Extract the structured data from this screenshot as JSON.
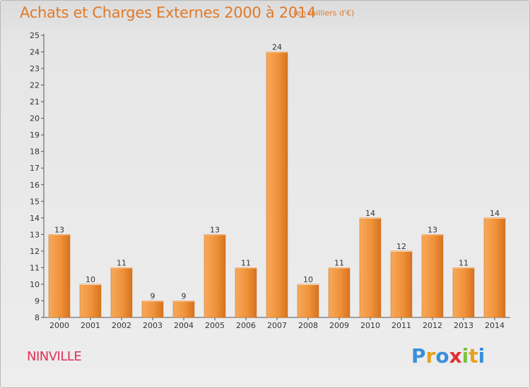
{
  "chart_data": {
    "type": "bar",
    "title": "Achats et Charges Externes 2000 à 2014",
    "subtitle": "(en milliers d'€)",
    "categories": [
      "2000",
      "2001",
      "2002",
      "2003",
      "2004",
      "2005",
      "2006",
      "2007",
      "2008",
      "2009",
      "2010",
      "2011",
      "2012",
      "2013",
      "2014"
    ],
    "values": [
      13,
      10,
      11,
      9,
      9,
      13,
      11,
      24,
      10,
      11,
      14,
      12,
      13,
      11,
      14
    ],
    "ylim": [
      8,
      25
    ],
    "yticks": [
      8,
      9,
      10,
      11,
      12,
      13,
      14,
      15,
      16,
      17,
      18,
      19,
      20,
      21,
      22,
      23,
      24,
      25
    ],
    "xlabel": "",
    "ylabel": "",
    "grid": false,
    "bar_color": "#f0923a"
  },
  "footer": {
    "commune": "NINVILLE",
    "brand": "Proxiti",
    "brand_letters": [
      "P",
      "r",
      "o",
      "x",
      "i",
      "t",
      "i"
    ]
  }
}
